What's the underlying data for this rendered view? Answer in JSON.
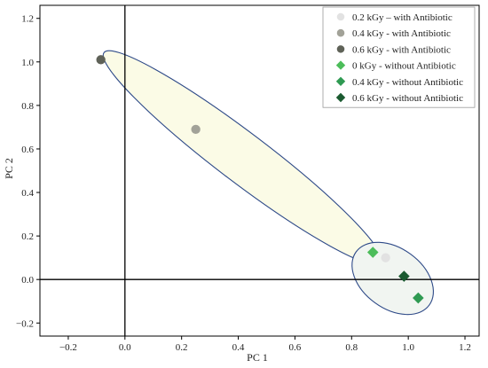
{
  "chart_data": {
    "type": "scatter",
    "title": "",
    "xlabel": "PC 1",
    "ylabel": "PC 2",
    "xlim": [
      -0.3,
      1.25
    ],
    "ylim": [
      -0.26,
      1.26
    ],
    "xticks": [
      -0.2,
      0.0,
      0.2,
      0.4,
      0.6,
      0.8,
      1.0,
      1.2
    ],
    "yticks": [
      -0.2,
      0.0,
      0.2,
      0.4,
      0.6,
      0.8,
      1.0,
      1.2
    ],
    "xtick_labels": [
      "−0.2",
      "0.0",
      "0.2",
      "0.4",
      "0.6",
      "0.8",
      "1.0",
      "1.2"
    ],
    "ytick_labels": [
      "−0.2",
      "0.0",
      "0.2",
      "0.4",
      "0.6",
      "0.8",
      "1.0",
      "1.2"
    ],
    "grid": false,
    "reference_lines": {
      "x": 0,
      "y": 0
    },
    "legend_position": "top-right",
    "series": [
      {
        "name": "0.2 kGy – with Antibiotic",
        "marker": "circle",
        "color": "#e2e2e2",
        "points": [
          {
            "x": 0.92,
            "y": 0.1
          }
        ]
      },
      {
        "name": "0.4 kGy - with Antibiotic",
        "marker": "circle",
        "color": "#a2a298",
        "points": [
          {
            "x": 0.25,
            "y": 0.69
          }
        ]
      },
      {
        "name": "0.6 kGy - with Antibiotic",
        "marker": "circle",
        "color": "#5f6258",
        "points": [
          {
            "x": -0.085,
            "y": 1.01
          }
        ]
      },
      {
        "name": "0 kGy - without Antibiotic",
        "marker": "diamond",
        "color": "#4cbd5a",
        "points": [
          {
            "x": 0.875,
            "y": 0.125
          }
        ]
      },
      {
        "name": "0.4 kGy - without Antibiotic",
        "marker": "diamond",
        "color": "#2f9a52",
        "points": [
          {
            "x": 1.035,
            "y": -0.085
          }
        ]
      },
      {
        "name": "0.6 kGy - without Antibiotic",
        "marker": "diamond",
        "color": "#1b5a30",
        "points": [
          {
            "x": 0.985,
            "y": 0.015
          }
        ]
      }
    ],
    "groups": [
      {
        "center": {
          "x": 0.415,
          "y": 0.56
        },
        "fill": "#fbfbe6",
        "stroke": "#2e4a88"
      },
      {
        "center": {
          "x": 0.945,
          "y": 0.005
        },
        "fill": "#f1f5f1",
        "stroke": "#2e4a88"
      }
    ],
    "colors": {
      "axis": "#000000",
      "legend_border": "#999999"
    }
  }
}
